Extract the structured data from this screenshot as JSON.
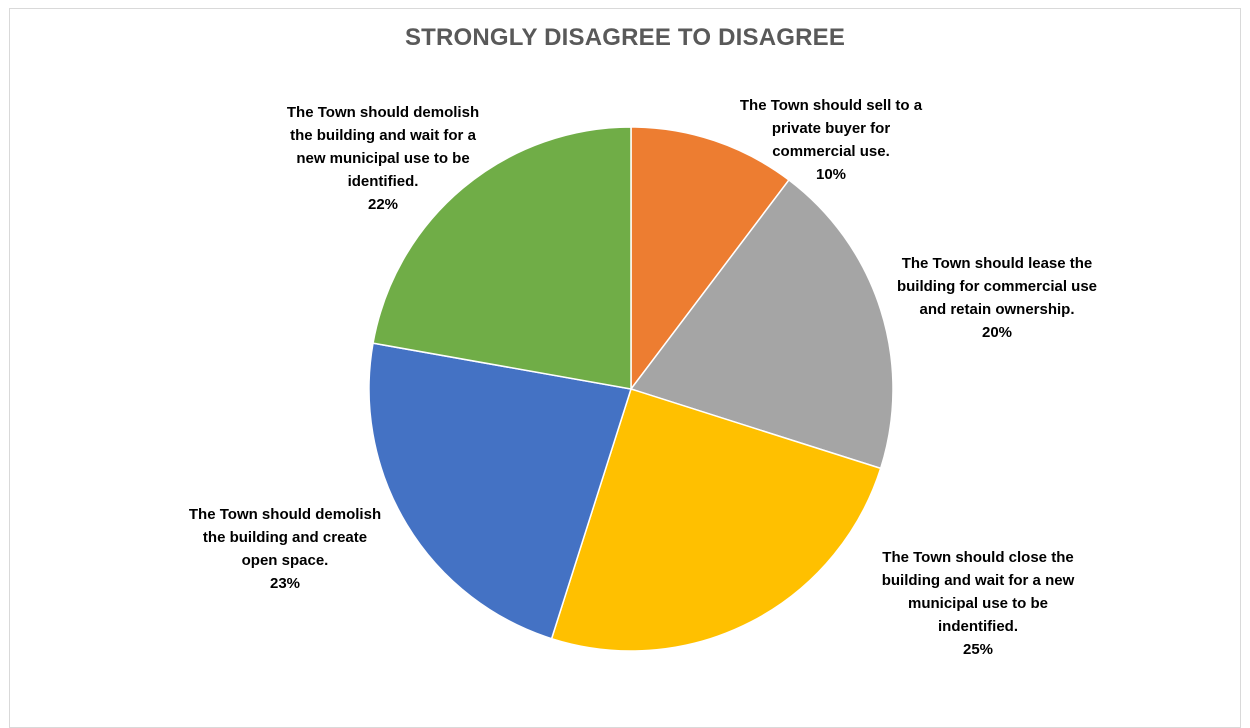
{
  "chart_data": {
    "type": "pie",
    "title": "STRONGLY DISAGREE TO DISAGREE",
    "start_angle_deg": 0,
    "direction": "clockwise",
    "slices": [
      {
        "label": "The Town should sell to a private buyer for commercial use.",
        "label_lines": [
          "The Town should sell to a",
          "private buyer for",
          "commercial use."
        ],
        "percent_label": "10%",
        "value": 10.3,
        "color": "#ED7D31"
      },
      {
        "label": "The Town should lease the building for commercial use and retain ownership.",
        "label_lines": [
          "The Town should lease the",
          "building for commercial use",
          "and retain ownership."
        ],
        "percent_label": "20%",
        "value": 19.6,
        "color": "#A5A5A5"
      },
      {
        "label": "The Town should close the building and wait for a new municipal use to be indentified.",
        "label_lines": [
          "The Town should close the",
          "building and wait for a new",
          "municipal use to be",
          "indentified."
        ],
        "percent_label": "25%",
        "value": 25.0,
        "color": "#FFC000"
      },
      {
        "label": "The Town should demolish the building and create open space.",
        "label_lines": [
          "The Town should demolish",
          "the building and create",
          "open space."
        ],
        "percent_label": "23%",
        "value": 22.9,
        "color": "#4472C4"
      },
      {
        "label": "The Town should demolish the building and wait for a new municipal use to be identified.",
        "label_lines": [
          "The Town should demolish",
          "the building and wait for a",
          "new municipal use to be",
          "identified."
        ],
        "percent_label": "22%",
        "value": 22.2,
        "color": "#70AD47"
      }
    ]
  }
}
